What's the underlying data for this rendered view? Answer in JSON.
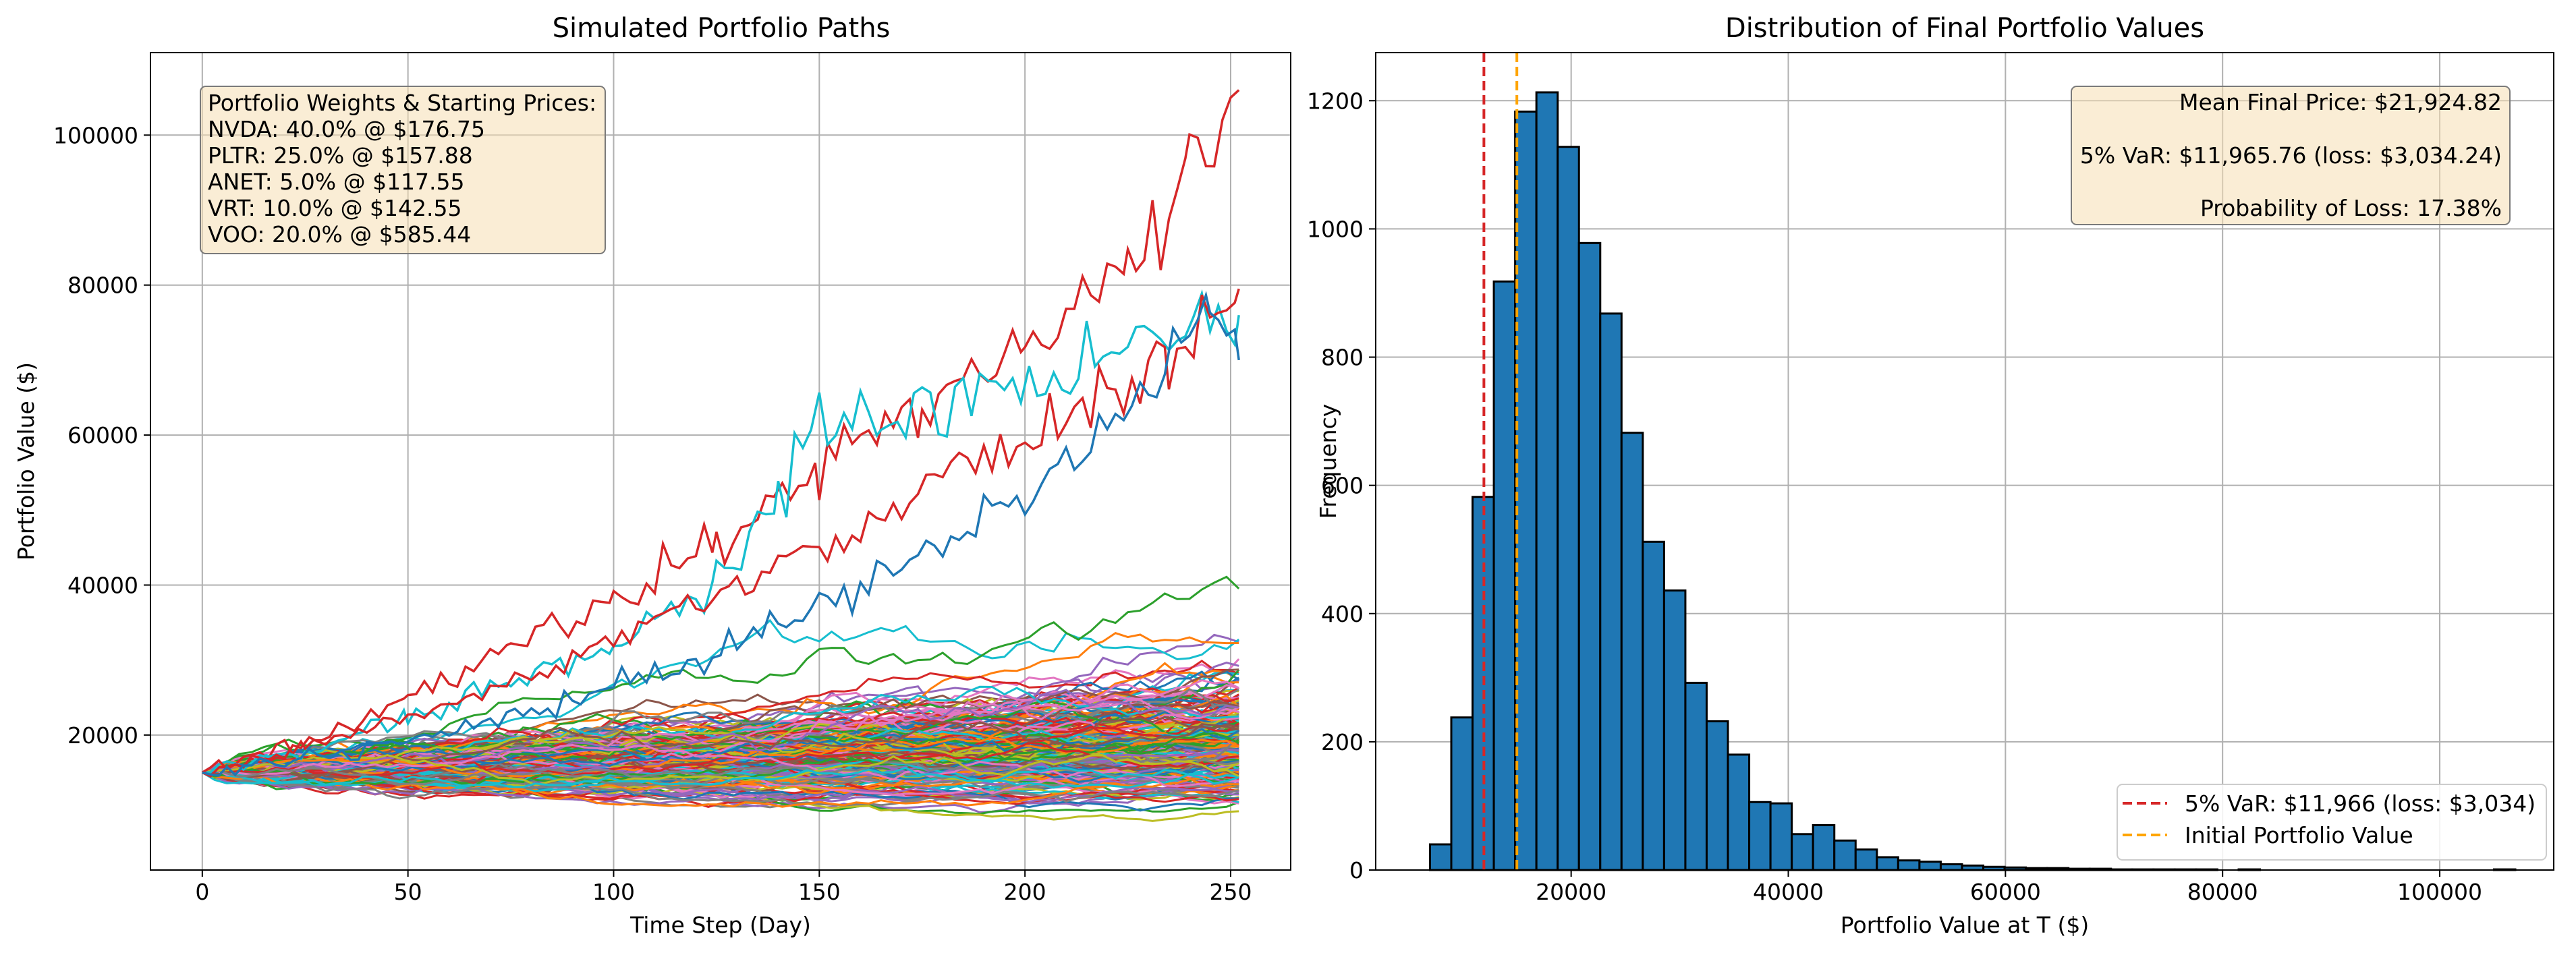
{
  "chart_data": [
    {
      "type": "line",
      "title": "Simulated Portfolio Paths",
      "xlabel": "Time Step (Day)",
      "ylabel": "Portfolio Value ($)",
      "xlim": [
        -12.6,
        264.6
      ],
      "ylim": [
        2000,
        111000
      ],
      "x_ticks": [
        0,
        50,
        100,
        150,
        200,
        250
      ],
      "x_tick_labels": [
        "0",
        "50",
        "100",
        "150",
        "200",
        "250"
      ],
      "y_ticks": [
        20000,
        40000,
        60000,
        80000,
        100000
      ],
      "y_tick_labels": [
        "20000",
        "40000",
        "60000",
        "80000",
        "100000"
      ],
      "grid": true,
      "start_value": 15000,
      "num_steps": 252,
      "paths_drawn_note": "",
      "annotation_lines": [
        "Portfolio Weights & Starting Prices:",
        "NVDA: 40.0% @ $176.75",
        "PLTR: 25.0% @ $157.88",
        "ANET: 5.0% @ $117.55",
        "VRT: 10.0% @ $142.55",
        "VOO: 20.0% @ $585.44"
      ],
      "annotation_placement": "top-left",
      "colors": [
        "#1f77b4",
        "#ff7f0e",
        "#2ca02c",
        "#d62728",
        "#9467bd",
        "#8c564b",
        "#e377c2",
        "#7f7f7f",
        "#bcbd22",
        "#17becf"
      ],
      "highlighted_series": [
        {
          "color": "#d62728",
          "x": [
            0,
            25,
            50,
            75,
            100,
            125,
            150,
            175,
            200,
            225,
            240,
            252
          ],
          "y": [
            15000,
            19000,
            25000,
            32000,
            37000,
            46000,
            55000,
            64000,
            72000,
            82000,
            95000,
            106000
          ]
        },
        {
          "color": "#17becf",
          "x": [
            0,
            25,
            50,
            75,
            100,
            125,
            140,
            150,
            165,
            185,
            205,
            225,
            252
          ],
          "y": [
            15000,
            18000,
            22000,
            27000,
            32000,
            40000,
            52000,
            63000,
            61000,
            65000,
            68000,
            72000,
            76000
          ]
        },
        {
          "color": "#d62728",
          "x": [
            0,
            30,
            60,
            90,
            120,
            150,
            180,
            210,
            235,
            252
          ],
          "y": [
            15000,
            19000,
            24000,
            30000,
            37000,
            45000,
            55000,
            62000,
            70000,
            79500
          ]
        },
        {
          "color": "#1f77b4",
          "x": [
            0,
            40,
            80,
            120,
            160,
            200,
            230,
            245,
            252
          ],
          "y": [
            15000,
            18000,
            23000,
            30000,
            40000,
            52000,
            66000,
            77000,
            70000
          ]
        }
      ]
    },
    {
      "type": "bar",
      "subtype": "histogram",
      "title": "Distribution of Final Portfolio Values",
      "xlabel": "Portfolio Value at T ($)",
      "ylabel": "Frequency",
      "xlim": [
        2000,
        110500
      ],
      "ylim": [
        0,
        1275
      ],
      "x_ticks": [
        20000,
        40000,
        60000,
        80000,
        100000
      ],
      "x_tick_labels": [
        "20000",
        "40000",
        "60000",
        "80000",
        "100000"
      ],
      "y_ticks": [
        0,
        200,
        400,
        600,
        800,
        1000,
        1200
      ],
      "y_tick_labels": [
        "0",
        "200",
        "400",
        "600",
        "800",
        "1000",
        "1200"
      ],
      "grid": true,
      "bar_color": "#1f77b4",
      "bin_start": 7000,
      "bin_width": 1960,
      "values": [
        40,
        238,
        582,
        918,
        1183,
        1213,
        1128,
        978,
        868,
        682,
        512,
        436,
        292,
        232,
        180,
        106,
        104,
        56,
        70,
        46,
        32,
        20,
        15,
        13,
        9,
        7,
        5,
        4,
        3,
        3,
        2,
        2,
        1,
        1,
        1,
        1,
        1,
        0,
        1,
        0,
        0,
        0,
        0,
        0,
        0,
        0,
        0,
        0,
        0,
        0,
        1
      ],
      "vlines": [
        {
          "value": 11965.76,
          "color": "#d62728",
          "label": "5% VaR: $11,966 (loss: $3,034)"
        },
        {
          "value": 15000,
          "color": "#ffa500",
          "label": "Initial Portfolio Value"
        }
      ],
      "stats_lines": [
        "Mean Final Price: $21,924.82",
        "5% VaR: $11,965.76 (loss: $3,034.24)",
        "Probability of Loss: 17.38%"
      ],
      "stats_placement": "top-right",
      "legend_placement": "lower-right"
    }
  ]
}
